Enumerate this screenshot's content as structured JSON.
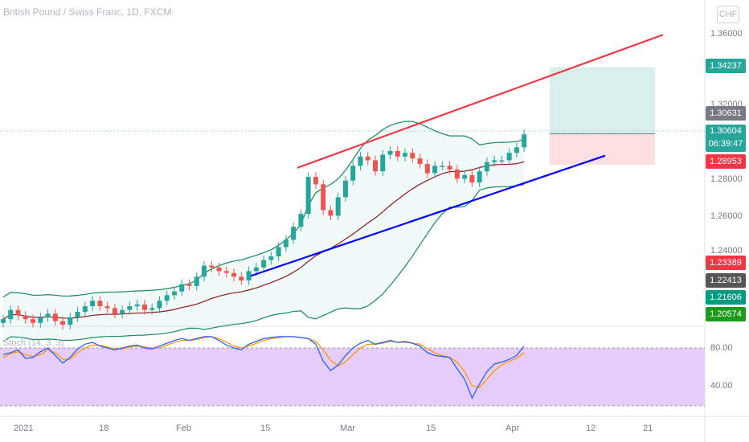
{
  "title": "British Pound / Swiss Franc, 1D, FXCM",
  "currency_badge": "CHF",
  "stoch_label": "Stoch (14, 3, 3)",
  "price_axis": [
    "1.36000",
    "1.32000",
    "1.28000",
    "1.26000",
    "1.24000"
  ],
  "stoch_axis": [
    "80.00",
    "40.00"
  ],
  "date_axis": [
    "2021",
    "18",
    "Feb",
    "15",
    "Mar",
    "15",
    "Apr",
    "12",
    "21"
  ],
  "price_tags": [
    {
      "value": "1.34237",
      "color": "#26a69a"
    },
    {
      "value": "1.30631",
      "color": "#787b86"
    },
    {
      "value": "1.30604",
      "sub": "06:39:47",
      "color": "#26a69a"
    },
    {
      "value": "1.28953",
      "color": "#f23645"
    },
    {
      "value": "1.23389",
      "color": "#f23645"
    },
    {
      "value": "1.22413",
      "color": "#555555"
    },
    {
      "value": "1.21606",
      "color": "#089981"
    },
    {
      "value": "1.20574",
      "color": "#1a9b1a"
    }
  ],
  "colors": {
    "up": "#26a69a",
    "down": "#ef5350",
    "stoch_k": "#2962ff",
    "stoch_d": "#ff9800",
    "trend_upper": "#f23645",
    "trend_lower": "#0000ff"
  },
  "chart_data": {
    "type": "candlestick",
    "title": "British Pound / Swiss Franc, 1D, FXCM",
    "y_range": [
      1.195,
      1.375
    ],
    "candles_close": [
      1.206,
      1.211,
      1.208,
      1.206,
      1.204,
      1.207,
      1.209,
      1.205,
      1.203,
      1.207,
      1.21,
      1.213,
      1.216,
      1.213,
      1.212,
      1.209,
      1.211,
      1.213,
      1.214,
      1.211,
      1.212,
      1.216,
      1.219,
      1.221,
      1.225,
      1.224,
      1.229,
      1.235,
      1.234,
      1.232,
      1.231,
      1.229,
      1.227,
      1.232,
      1.234,
      1.238,
      1.24,
      1.245,
      1.249,
      1.256,
      1.263,
      1.283,
      1.279,
      1.265,
      1.262,
      1.272,
      1.281,
      1.289,
      1.294,
      1.292,
      1.286,
      1.295,
      1.297,
      1.294,
      1.296,
      1.293,
      1.29,
      1.285,
      1.289,
      1.289,
      1.287,
      1.282,
      1.284,
      1.28,
      1.286,
      1.291,
      1.292,
      1.292,
      1.296,
      1.299,
      1.306
    ],
    "stoch_k": [
      73,
      75,
      78,
      69,
      70,
      76,
      80,
      72,
      64,
      70,
      79,
      84,
      86,
      82,
      80,
      78,
      80,
      82,
      83,
      80,
      79,
      82,
      85,
      88,
      90,
      88,
      90,
      92,
      92,
      88,
      83,
      80,
      78,
      84,
      87,
      90,
      91,
      92,
      92,
      92,
      91,
      90,
      84,
      66,
      56,
      62,
      72,
      80,
      85,
      88,
      84,
      86,
      88,
      86,
      87,
      85,
      82,
      75,
      72,
      71,
      70,
      58,
      47,
      27,
      42,
      55,
      63,
      65,
      68,
      72,
      82
    ],
    "stoch_d": [
      70,
      74,
      76,
      73,
      71,
      73,
      78,
      75,
      68,
      68,
      75,
      80,
      83,
      83,
      81,
      79,
      79,
      81,
      82,
      81,
      80,
      80,
      83,
      86,
      88,
      88,
      89,
      91,
      92,
      90,
      86,
      82,
      80,
      82,
      85,
      88,
      90,
      91,
      92,
      92,
      91,
      90,
      87,
      78,
      67,
      61,
      65,
      73,
      80,
      84,
      84,
      85,
      87,
      86,
      86,
      85,
      84,
      79,
      75,
      72,
      70,
      65,
      55,
      40,
      38,
      47,
      56,
      62,
      66,
      69,
      75
    ],
    "trendlines": [
      {
        "name": "upper",
        "from": [
          "2021-02-23",
          1.2879
        ],
        "to": [
          "2021-04-21",
          1.3599
        ]
      },
      {
        "name": "lower",
        "from": [
          "2021-02-11",
          1.2294
        ],
        "to": [
          "2021-04-14",
          1.2945
        ]
      }
    ],
    "position_box": {
      "target": 1.34237,
      "entry": 1.30631,
      "stop": 1.28953
    },
    "current_price": 1.30604
  }
}
